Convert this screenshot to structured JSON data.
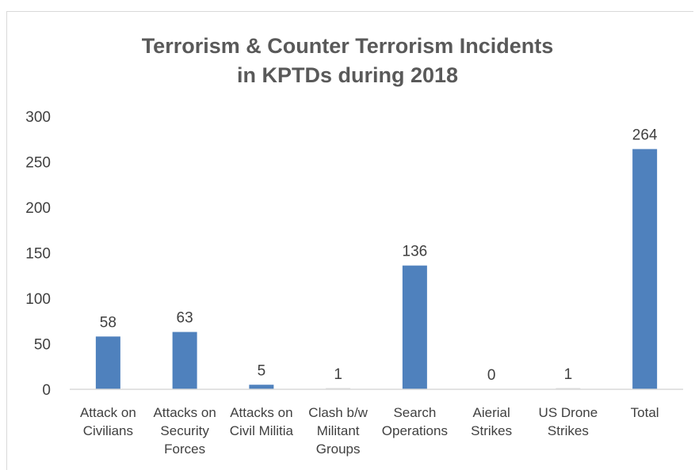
{
  "chart_data": {
    "type": "bar",
    "title_lines": [
      "Terrorism & Counter Terrorism Incidents",
      "in KPTDs during 2018"
    ],
    "categories": [
      [
        "Attack on",
        "Civilians"
      ],
      [
        "Attacks on",
        "Security",
        "Forces"
      ],
      [
        "Attacks on",
        "Civil Militia"
      ],
      [
        "Clash b/w",
        "Militant",
        "Groups"
      ],
      [
        "Search",
        "Operations"
      ],
      [
        "Aierial",
        "Strikes"
      ],
      [
        "US Drone",
        "Strikes"
      ],
      [
        "Total"
      ]
    ],
    "values": [
      58,
      63,
      5,
      1,
      136,
      0,
      1,
      264
    ],
    "ylim": [
      0,
      300
    ],
    "yticks": [
      0,
      50,
      100,
      150,
      200,
      250,
      300
    ],
    "xlabel": "",
    "ylabel": "",
    "grid": false,
    "bar_color": "#4f81bd",
    "axis_color": "#d9d9d9"
  }
}
